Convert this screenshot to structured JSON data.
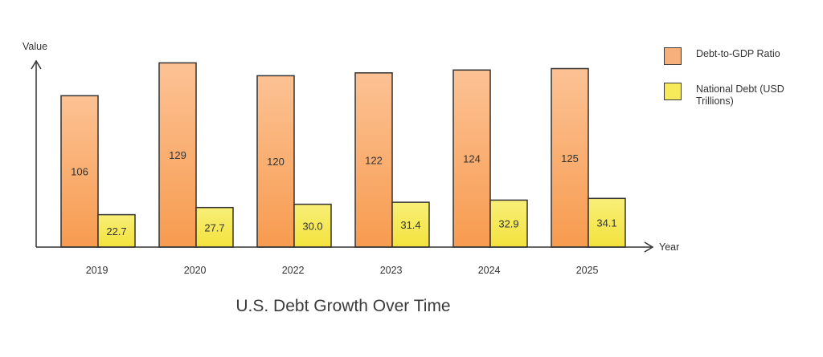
{
  "chart_data": {
    "type": "bar",
    "title": "U.S. Debt Growth Over Time",
    "xlabel": "Year",
    "ylabel": "Value",
    "categories": [
      "2019",
      "2020",
      "2022",
      "2023",
      "2024",
      "2025"
    ],
    "series": [
      {
        "name": "Debt-to-GDP Ratio",
        "values": [
          106,
          129,
          120,
          122,
          124,
          125
        ],
        "color": "#f7a96a"
      },
      {
        "name": "National Debt (USD Trillions)",
        "values": [
          22.7,
          27.7,
          30.0,
          31.4,
          32.9,
          34.1
        ],
        "color": "#f6ea5a"
      }
    ],
    "value_labels": [
      [
        "106",
        "129",
        "120",
        "122",
        "124",
        "125"
      ],
      [
        "22.7",
        "27.7",
        "30.0",
        "31.4",
        "32.9",
        "34.1"
      ]
    ],
    "legend_position": "right",
    "grid": false
  }
}
